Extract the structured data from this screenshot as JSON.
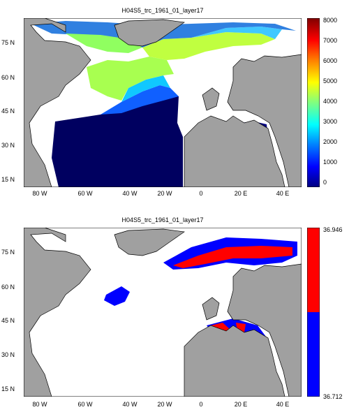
{
  "panels": [
    {
      "title": "H04S5_trc_1961_01_layer17",
      "colorbar": {
        "colors": [
          "#000080",
          "#0000ff",
          "#0080ff",
          "#00ffff",
          "#80ff80",
          "#ffff00",
          "#ff8000",
          "#ff0000",
          "#800000"
        ],
        "ticks": [
          "8000",
          "7000",
          "6000",
          "5000",
          "4000",
          "3000",
          "2000",
          "1000",
          "0"
        ]
      },
      "lat_labels": [
        "75 N",
        "60 N",
        "45 N",
        "30 N",
        "15 N"
      ],
      "lon_labels": [
        "80 W",
        "60 W",
        "40 W",
        "20 W",
        "0",
        "20 E",
        "40 E"
      ]
    },
    {
      "title": "H04S5_trc_1961_01_layer17",
      "colorbar": {
        "colors": [
          "#ff0000",
          "#0000ff"
        ],
        "ticks": [
          "36.946",
          "36.712"
        ]
      },
      "lat_labels": [
        "75 N",
        "60 N",
        "45 N",
        "30 N",
        "15 N"
      ],
      "lon_labels": [
        "80 W",
        "60 W",
        "40 W",
        "20 W",
        "0",
        "20 E",
        "40 E"
      ]
    }
  ],
  "colors": {
    "land": "#a0a0a0",
    "ocean_no_data": "#ffffff"
  }
}
